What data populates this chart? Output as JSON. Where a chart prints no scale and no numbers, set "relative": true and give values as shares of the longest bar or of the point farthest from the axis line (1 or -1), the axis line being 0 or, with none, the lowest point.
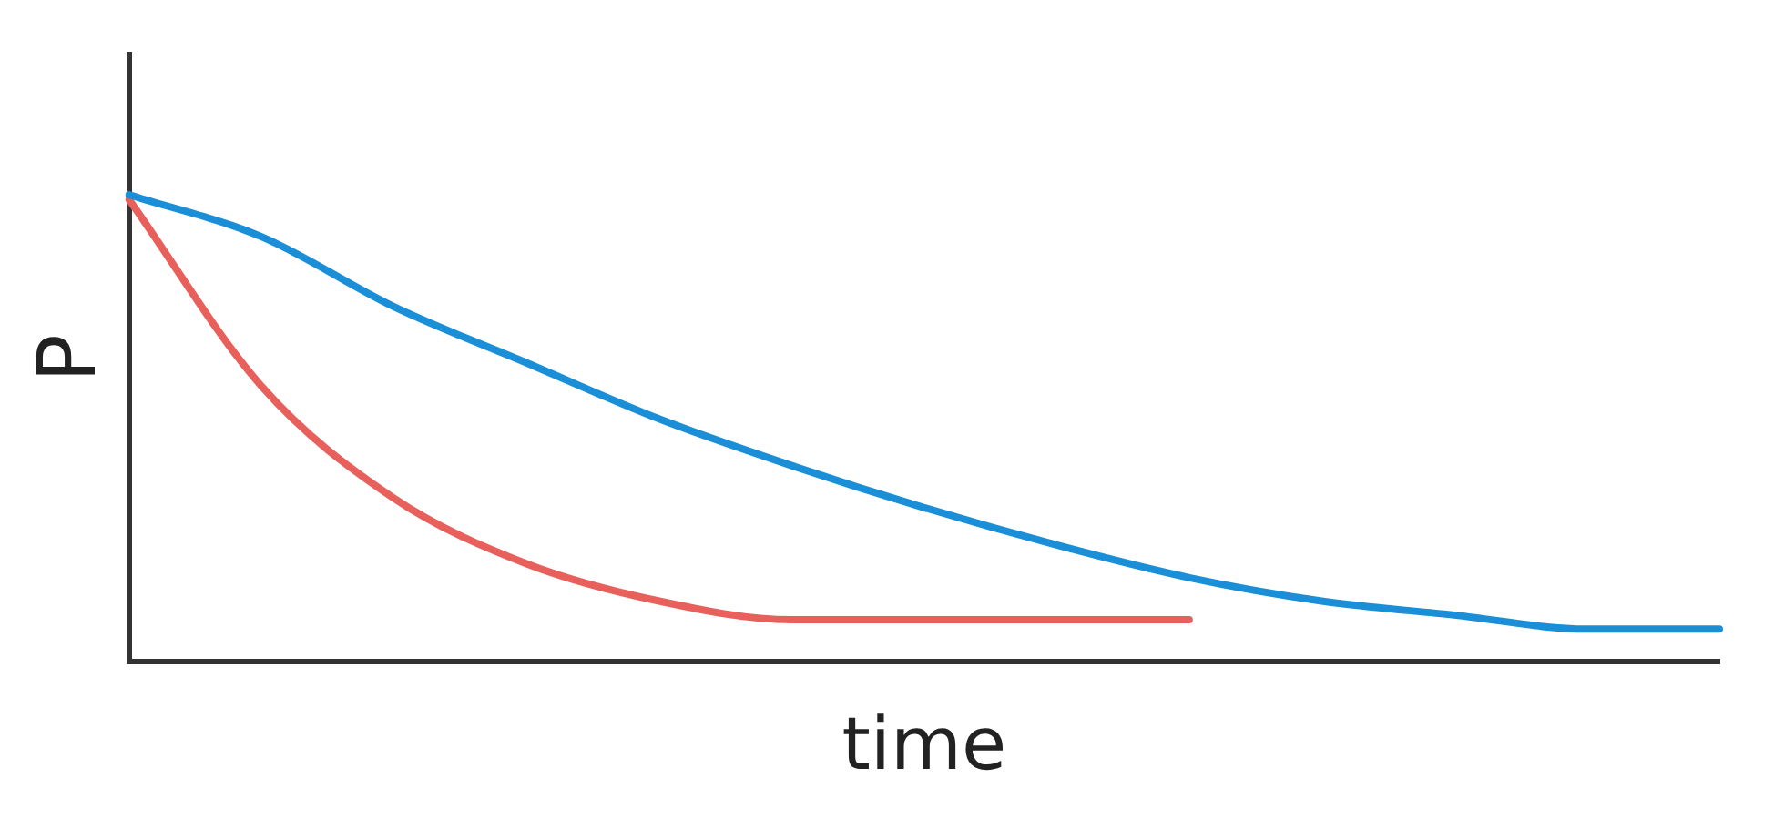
{
  "chart_data": {
    "type": "line",
    "relative": true,
    "xlabel": "time",
    "ylabel": "P",
    "grid": false,
    "legend": false,
    "marker": "none",
    "line_style": "solid",
    "categories": [
      null,
      null,
      null,
      null,
      null,
      null,
      null,
      null,
      null,
      null,
      null,
      null,
      null
    ],
    "series": [
      {
        "color": "#1a8fd8",
        "values": [
          1,
          0.91,
          0.76,
          0.64,
          0.52,
          0.42,
          0.33,
          0.25,
          0.18,
          0.13,
          0.1,
          0.07,
          0.07
        ]
      },
      {
        "color": "#e8605c",
        "values": [
          0.99,
          0.59,
          0.35,
          0.21,
          0.13,
          0.09,
          0.09,
          0.09,
          0.09,
          null,
          null,
          null,
          null
        ]
      }
    ]
  }
}
